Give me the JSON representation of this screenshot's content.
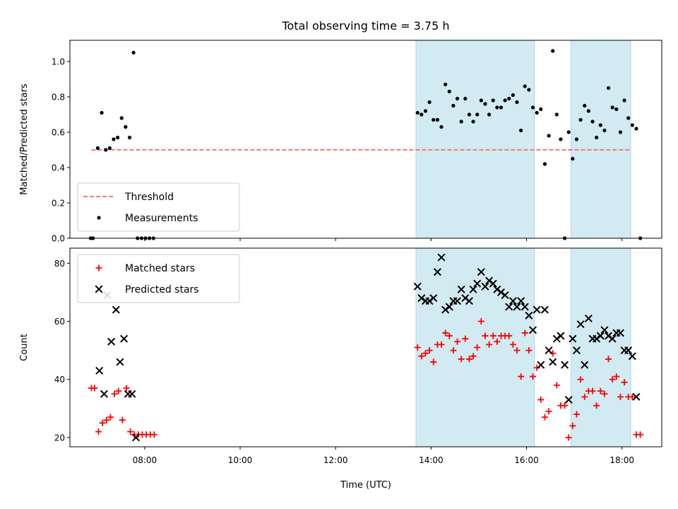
{
  "chart_data": {
    "title": "Total observing time = 3.75 h",
    "xlabel": "Time (UTC)",
    "xlim": [
      "06:26",
      "18:50"
    ],
    "x_ticks": [
      "08:00",
      "10:00",
      "12:00",
      "14:00",
      "16:00",
      "18:00"
    ],
    "grid": false,
    "shaded_intervals": [
      {
        "start": "13:41",
        "end": "16:10"
      },
      {
        "start": "16:56",
        "end": "18:11"
      }
    ],
    "shade_color": "#add8e6",
    "panels": [
      {
        "type": "scatter",
        "ylabel": "Matched/Predicted stars",
        "ylim": [
          0,
          1.12
        ],
        "y_ticks": [
          "0.0",
          "0.2",
          "0.4",
          "0.6",
          "0.8",
          "1.0"
        ],
        "legend_position": "lower-left",
        "threshold": {
          "name": "Threshold",
          "value": 0.5,
          "start": "06:53",
          "end": "18:11",
          "color": "#ff6666",
          "style": "dashed"
        },
        "series": [
          {
            "name": "Measurements",
            "color": "#000000",
            "marker": "dot",
            "points": [
              [
                "06:52",
                0
              ],
              [
                "06:55",
                0
              ],
              [
                "07:01",
                0.51
              ],
              [
                "07:06",
                0.71
              ],
              [
                "07:11",
                0.5
              ],
              [
                "07:16",
                0.51
              ],
              [
                "07:21",
                0.56
              ],
              [
                "07:26",
                0.57
              ],
              [
                "07:31",
                0.68
              ],
              [
                "07:36",
                0.63
              ],
              [
                "07:41",
                0.57
              ],
              [
                "07:46",
                1.05
              ],
              [
                "07:51",
                0
              ],
              [
                "07:56",
                0
              ],
              [
                "08:01",
                0
              ],
              [
                "08:06",
                0
              ],
              [
                "08:11",
                0
              ],
              [
                "13:43",
                0.71
              ],
              [
                "13:48",
                0.7
              ],
              [
                "13:53",
                0.72
              ],
              [
                "13:58",
                0.77
              ],
              [
                "14:03",
                0.67
              ],
              [
                "14:08",
                0.67
              ],
              [
                "14:13",
                0.63
              ],
              [
                "14:18",
                0.87
              ],
              [
                "14:23",
                0.83
              ],
              [
                "14:28",
                0.75
              ],
              [
                "14:33",
                0.79
              ],
              [
                "14:38",
                0.66
              ],
              [
                "14:43",
                0.79
              ],
              [
                "14:48",
                0.7
              ],
              [
                "14:53",
                0.66
              ],
              [
                "14:58",
                0.7
              ],
              [
                "15:03",
                0.78
              ],
              [
                "15:08",
                0.76
              ],
              [
                "15:13",
                0.7
              ],
              [
                "15:18",
                0.78
              ],
              [
                "15:23",
                0.74
              ],
              [
                "15:28",
                0.74
              ],
              [
                "15:33",
                0.78
              ],
              [
                "15:38",
                0.79
              ],
              [
                "15:43",
                0.81
              ],
              [
                "15:48",
                0.77
              ],
              [
                "15:53",
                0.61
              ],
              [
                "15:58",
                0.86
              ],
              [
                "16:03",
                0.84
              ],
              [
                "16:08",
                0.74
              ],
              [
                "16:13",
                0.71
              ],
              [
                "16:18",
                0.73
              ],
              [
                "16:23",
                0.42
              ],
              [
                "16:28",
                0.58
              ],
              [
                "16:33",
                1.06
              ],
              [
                "16:38",
                0.7
              ],
              [
                "16:43",
                0.56
              ],
              [
                "16:48",
                0
              ],
              [
                "16:53",
                0.6
              ],
              [
                "16:58",
                0.45
              ],
              [
                "17:03",
                0.56
              ],
              [
                "17:08",
                0.67
              ],
              [
                "17:13",
                0.75
              ],
              [
                "17:18",
                0.72
              ],
              [
                "17:23",
                0.66
              ],
              [
                "17:28",
                0.57
              ],
              [
                "17:33",
                0.64
              ],
              [
                "17:38",
                0.61
              ],
              [
                "17:43",
                0.85
              ],
              [
                "17:48",
                0.74
              ],
              [
                "17:53",
                0.73
              ],
              [
                "17:58",
                0.6
              ],
              [
                "18:03",
                0.78
              ],
              [
                "18:08",
                0.68
              ],
              [
                "18:13",
                0.64
              ],
              [
                "18:18",
                0.62
              ],
              [
                "18:23",
                0
              ]
            ]
          }
        ]
      },
      {
        "type": "scatter",
        "ylabel": "Count",
        "ylim": [
          16.8,
          85.2
        ],
        "y_ticks": [
          "20",
          "40",
          "60",
          "80"
        ],
        "legend_position": "upper-left",
        "series": [
          {
            "name": "Matched stars",
            "color": "#ff0000",
            "marker": "plus",
            "points": [
              [
                "06:53",
                37
              ],
              [
                "06:57",
                37
              ],
              [
                "07:02",
                22
              ],
              [
                "07:07",
                25
              ],
              [
                "07:12",
                26
              ],
              [
                "07:17",
                27
              ],
              [
                "07:22",
                35
              ],
              [
                "07:27",
                36
              ],
              [
                "07:32",
                26
              ],
              [
                "07:37",
                37
              ],
              [
                "07:42",
                22
              ],
              [
                "07:47",
                21
              ],
              [
                "07:52",
                21
              ],
              [
                "07:57",
                21
              ],
              [
                "08:02",
                21
              ],
              [
                "08:07",
                21
              ],
              [
                "08:12",
                21
              ],
              [
                "13:43",
                51
              ],
              [
                "13:48",
                48
              ],
              [
                "13:53",
                49
              ],
              [
                "13:58",
                50
              ],
              [
                "14:03",
                46
              ],
              [
                "14:08",
                52
              ],
              [
                "14:13",
                52
              ],
              [
                "14:18",
                56
              ],
              [
                "14:23",
                55
              ],
              [
                "14:28",
                50
              ],
              [
                "14:33",
                53
              ],
              [
                "14:38",
                47
              ],
              [
                "14:43",
                54
              ],
              [
                "14:48",
                47
              ],
              [
                "14:53",
                48
              ],
              [
                "14:58",
                51
              ],
              [
                "15:03",
                60
              ],
              [
                "15:08",
                55
              ],
              [
                "15:13",
                52
              ],
              [
                "15:18",
                55
              ],
              [
                "15:23",
                53
              ],
              [
                "15:28",
                55
              ],
              [
                "15:33",
                55
              ],
              [
                "15:38",
                55
              ],
              [
                "15:43",
                52
              ],
              [
                "15:48",
                50
              ],
              [
                "15:53",
                41
              ],
              [
                "15:58",
                56
              ],
              [
                "16:03",
                50
              ],
              [
                "16:08",
                41
              ],
              [
                "16:13",
                44
              ],
              [
                "16:18",
                33
              ],
              [
                "16:23",
                27
              ],
              [
                "16:28",
                29
              ],
              [
                "16:33",
                49
              ],
              [
                "16:38",
                38
              ],
              [
                "16:43",
                31
              ],
              [
                "16:48",
                31
              ],
              [
                "16:53",
                20
              ],
              [
                "16:58",
                24
              ],
              [
                "17:03",
                28
              ],
              [
                "17:08",
                40
              ],
              [
                "17:13",
                34
              ],
              [
                "17:18",
                36
              ],
              [
                "17:23",
                36
              ],
              [
                "17:28",
                31
              ],
              [
                "17:33",
                36
              ],
              [
                "17:38",
                35
              ],
              [
                "17:43",
                47
              ],
              [
                "17:48",
                40
              ],
              [
                "17:53",
                41
              ],
              [
                "17:58",
                34
              ],
              [
                "18:03",
                39
              ],
              [
                "18:08",
                34
              ],
              [
                "18:13",
                34
              ],
              [
                "18:18",
                21
              ],
              [
                "18:23",
                21
              ]
            ]
          },
          {
            "name": "Predicted stars",
            "color": "#000000",
            "marker": "x",
            "points": [
              [
                "07:03",
                43
              ],
              [
                "07:09",
                35
              ],
              [
                "07:13",
                69
              ],
              [
                "07:18",
                53
              ],
              [
                "07:24",
                64
              ],
              [
                "07:29",
                46
              ],
              [
                "07:34",
                54
              ],
              [
                "07:39",
                35
              ],
              [
                "07:44",
                35
              ],
              [
                "07:49",
                20
              ],
              [
                "13:43",
                72
              ],
              [
                "13:48",
                68
              ],
              [
                "13:53",
                67
              ],
              [
                "13:58",
                67
              ],
              [
                "14:03",
                68
              ],
              [
                "14:08",
                77
              ],
              [
                "14:13",
                82
              ],
              [
                "14:18",
                64
              ],
              [
                "14:23",
                65
              ],
              [
                "14:28",
                67
              ],
              [
                "14:33",
                67
              ],
              [
                "14:38",
                71
              ],
              [
                "14:43",
                68
              ],
              [
                "14:48",
                67
              ],
              [
                "14:53",
                71
              ],
              [
                "14:58",
                73
              ],
              [
                "15:03",
                77
              ],
              [
                "15:08",
                72
              ],
              [
                "15:13",
                74
              ],
              [
                "15:18",
                73
              ],
              [
                "15:23",
                71
              ],
              [
                "15:28",
                70
              ],
              [
                "15:33",
                69
              ],
              [
                "15:38",
                65
              ],
              [
                "15:43",
                67
              ],
              [
                "15:48",
                65
              ],
              [
                "15:53",
                67
              ],
              [
                "15:58",
                65
              ],
              [
                "16:03",
                62
              ],
              [
                "16:08",
                57
              ],
              [
                "16:13",
                64
              ],
              [
                "16:18",
                45
              ],
              [
                "16:23",
                64
              ],
              [
                "16:28",
                50
              ],
              [
                "16:33",
                46
              ],
              [
                "16:38",
                54
              ],
              [
                "16:43",
                55
              ],
              [
                "16:48",
                45
              ],
              [
                "16:53",
                33
              ],
              [
                "16:58",
                54
              ],
              [
                "17:03",
                50
              ],
              [
                "17:08",
                59
              ],
              [
                "17:13",
                45
              ],
              [
                "17:18",
                61
              ],
              [
                "17:23",
                54
              ],
              [
                "17:28",
                54
              ],
              [
                "17:33",
                55
              ],
              [
                "17:38",
                57
              ],
              [
                "17:43",
                55
              ],
              [
                "17:48",
                54
              ],
              [
                "17:53",
                56
              ],
              [
                "17:58",
                56
              ],
              [
                "18:03",
                50
              ],
              [
                "18:08",
                50
              ],
              [
                "18:13",
                48
              ],
              [
                "18:18",
                34
              ]
            ]
          }
        ]
      }
    ]
  }
}
